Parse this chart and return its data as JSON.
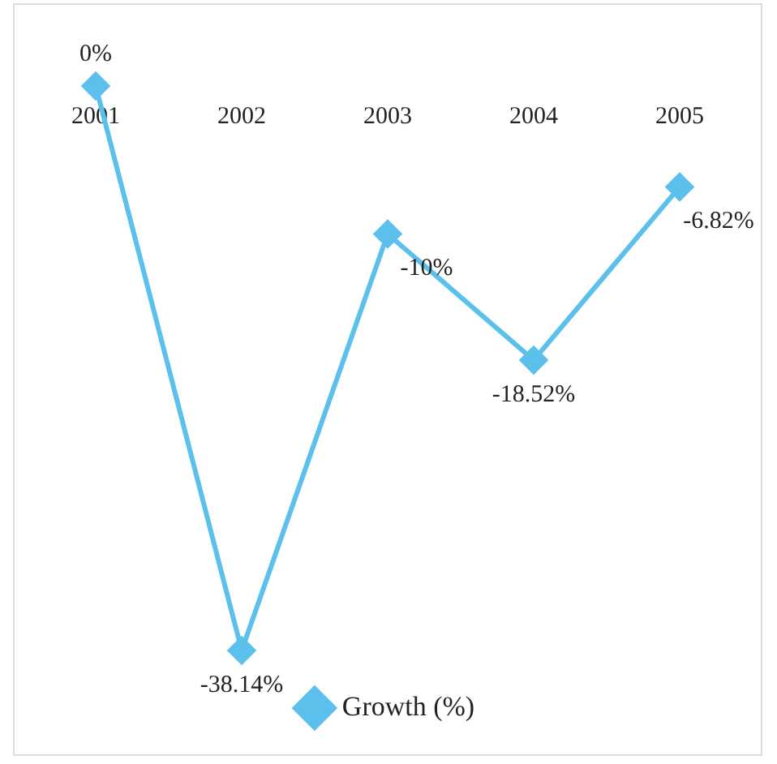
{
  "chart_data": {
    "type": "line",
    "categories": [
      "2001",
      "2002",
      "2003",
      "2004",
      "2005"
    ],
    "series": [
      {
        "name": "Growth (%)",
        "color": "#5bc0eb",
        "values": [
          0,
          -38.14,
          -10,
          -18.52,
          -6.82
        ],
        "value_labels": [
          "0%",
          "-38.14%",
          "-10%",
          "-18.52%",
          "-6.82%"
        ]
      }
    ],
    "marker": "diamond",
    "legend": "bottom",
    "grid": false
  }
}
